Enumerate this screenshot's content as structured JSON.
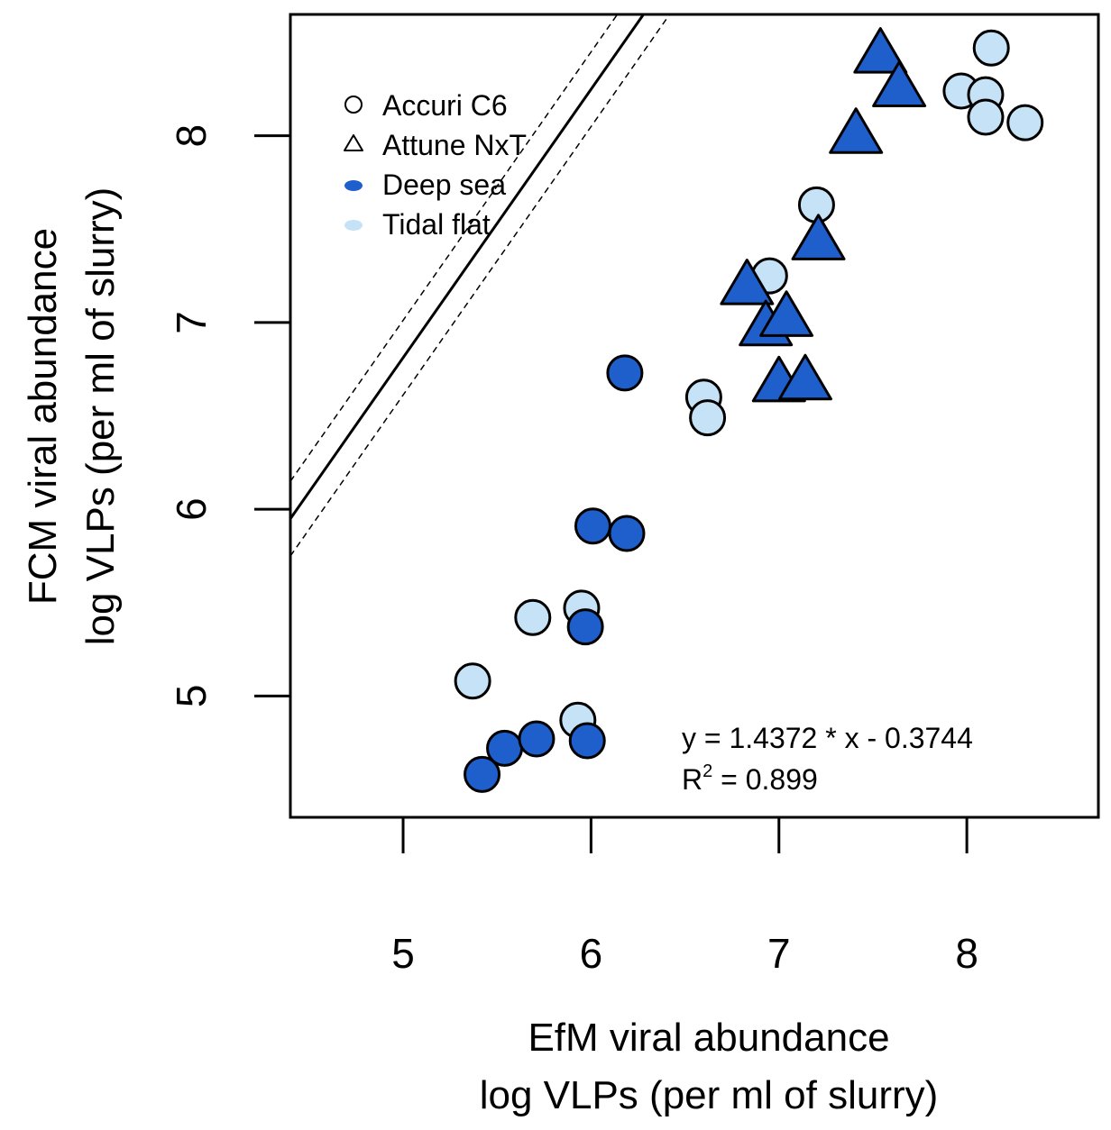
{
  "chart_data": {
    "type": "scatter",
    "xlabel_line1": "EfM viral abundance",
    "xlabel_line2": "log VLPs (per ml of slurry)",
    "ylabel_line1": "FCM viral abundance",
    "ylabel_line2": "log VLPs (per ml of slurry)",
    "xlim": [
      4.4,
      8.7
    ],
    "ylim": [
      4.35,
      8.65
    ],
    "x_ticks": [
      5,
      6,
      7,
      8
    ],
    "y_ticks": [
      5,
      6,
      7,
      8
    ],
    "x_tick_labels": [
      "5",
      "6",
      "7",
      "8"
    ],
    "y_tick_labels": [
      "5",
      "6",
      "7",
      "8"
    ],
    "colors": {
      "deep_sea": "#1f5fcb",
      "tidal_flat": "#c6e2f7",
      "outline": "#000000"
    },
    "legend": {
      "position": "top-left",
      "entries": [
        {
          "label": "Accuri C6",
          "marker": "open-circle"
        },
        {
          "label": "Attune NxT",
          "marker": "open-triangle"
        },
        {
          "label": "Deep sea",
          "marker": "filled-dark"
        },
        {
          "label": "Tidal flat",
          "marker": "filled-light"
        }
      ]
    },
    "fit": {
      "slope": 1.4372,
      "intercept": -0.3744,
      "equation_text": "y = 1.4372 * x - 0.3744",
      "r2_prefix": "R",
      "r2_sup": "2",
      "r2_suffix": " = 0.899",
      "ci_offset": 0.2
    },
    "series": [
      {
        "name": "Accuri C6 - Tidal flat",
        "instrument": "Accuri C6",
        "site": "Tidal flat",
        "points": [
          [
            5.37,
            5.08
          ],
          [
            5.69,
            5.42
          ],
          [
            5.95,
            5.47
          ],
          [
            5.93,
            4.87
          ],
          [
            6.6,
            6.6
          ],
          [
            6.62,
            6.49
          ],
          [
            6.95,
            7.25
          ],
          [
            7.2,
            7.63
          ],
          [
            7.97,
            8.24
          ],
          [
            8.1,
            8.22
          ],
          [
            8.13,
            8.47
          ],
          [
            8.1,
            8.1
          ],
          [
            8.31,
            8.07
          ]
        ]
      },
      {
        "name": "Accuri C6 - Deep sea",
        "instrument": "Accuri C6",
        "site": "Deep sea",
        "points": [
          [
            5.42,
            4.58
          ],
          [
            5.54,
            4.72
          ],
          [
            5.71,
            4.77
          ],
          [
            5.98,
            4.76
          ],
          [
            5.97,
            5.37
          ],
          [
            6.01,
            5.91
          ],
          [
            6.19,
            5.87
          ],
          [
            6.18,
            6.73
          ]
        ]
      },
      {
        "name": "Attune NxT - Deep sea",
        "instrument": "Attune NxT",
        "site": "Deep sea",
        "points": [
          [
            6.83,
            7.19
          ],
          [
            6.93,
            6.97
          ],
          [
            7.04,
            7.02
          ],
          [
            7.0,
            6.67
          ],
          [
            7.14,
            6.68
          ],
          [
            7.21,
            7.43
          ],
          [
            7.41,
            8.0
          ],
          [
            7.54,
            8.43
          ],
          [
            7.64,
            8.25
          ]
        ]
      }
    ]
  }
}
